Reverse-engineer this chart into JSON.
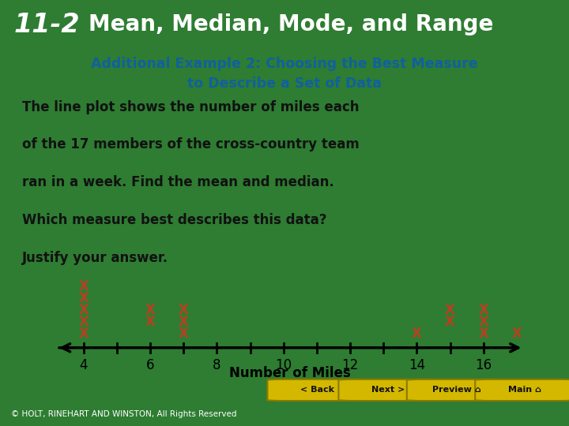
{
  "title_number": "11-2",
  "title_text": "Mean, Median, Mode, and Range",
  "subtitle_line1": "Additional Example 2: Choosing the Best Measure",
  "subtitle_line2": "to Describe a Set of Data",
  "body_text": "The line plot shows the number of miles each\nof the 17 members of the cross-country team\nran in a week. Find the mean and median.\nWhich measure best describes this data?\nJustify your answer.",
  "axis_label": "Number of Miles",
  "axis_min": 3.2,
  "axis_max": 17.2,
  "axis_ticks": [
    4,
    6,
    8,
    10,
    12,
    14,
    16
  ],
  "x_marks": [
    {
      "value": 4,
      "row": 5
    },
    {
      "value": 4,
      "row": 4
    },
    {
      "value": 4,
      "row": 3
    },
    {
      "value": 4,
      "row": 2
    },
    {
      "value": 4,
      "row": 1
    },
    {
      "value": 6,
      "row": 3
    },
    {
      "value": 7,
      "row": 3
    },
    {
      "value": 6,
      "row": 2
    },
    {
      "value": 7,
      "row": 2
    },
    {
      "value": 7,
      "row": 1
    },
    {
      "value": 14,
      "row": 1
    },
    {
      "value": 15,
      "row": 3
    },
    {
      "value": 16,
      "row": 3
    },
    {
      "value": 15,
      "row": 2
    },
    {
      "value": 16,
      "row": 2
    },
    {
      "value": 16,
      "row": 1
    },
    {
      "value": 17,
      "row": 1
    }
  ],
  "x_color": "#b84020",
  "header_bg": "#1a1a2e",
  "header_text_color": "#ffffff",
  "subtitle_color": "#1060a0",
  "body_bg": "#ffffff",
  "footer_green": "#2e7d32",
  "footer_black": "#111111",
  "copyright_text": "© HOLT, RINEHART AND WINSTON, All Rights Reserved",
  "button_labels": [
    "< Back",
    "Next >",
    "Preview ⌂",
    "Main ⌂"
  ],
  "button_color": "#d4b800",
  "button_border": "#8a7a00"
}
